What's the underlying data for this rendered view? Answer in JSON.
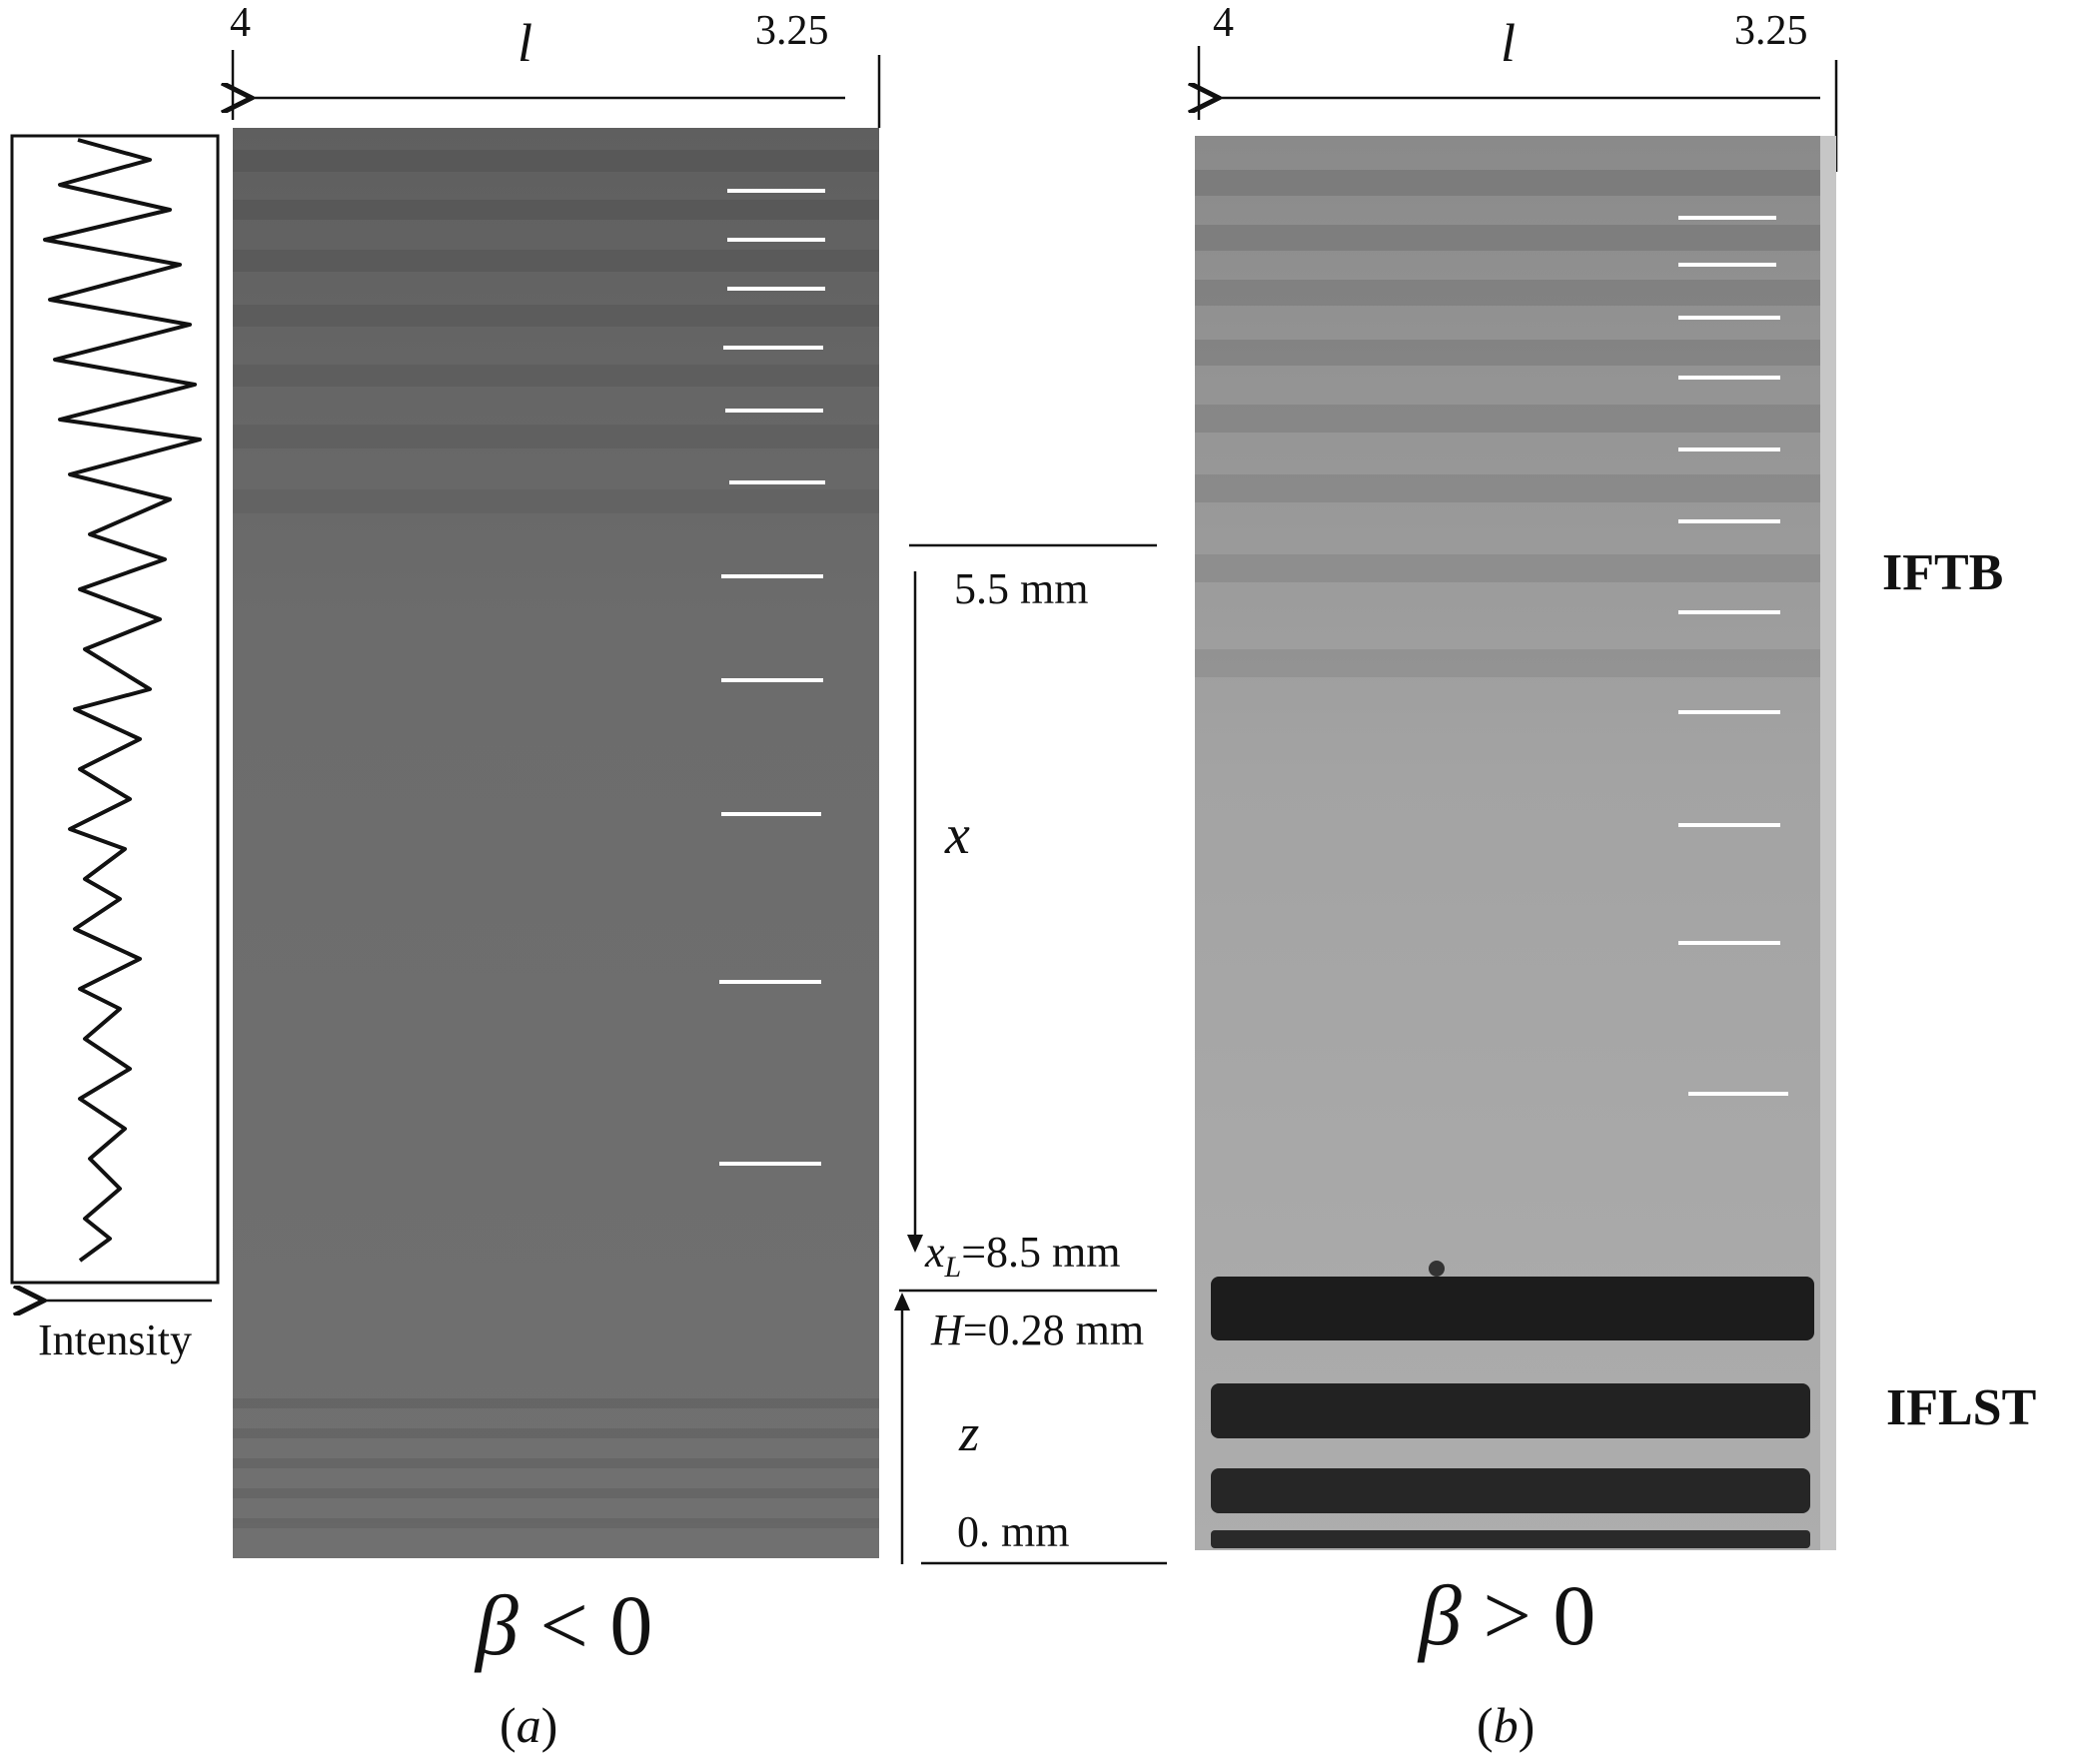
{
  "panel_a": {
    "l_start": "4",
    "l_label": "l",
    "l_end": "3.25",
    "intensity_label": "Intensity",
    "mark_x": "x",
    "mark_55": "5.5 mm",
    "mark_xL_var": "x",
    "mark_xL_sub": "L",
    "mark_xL_val": "=8.5 mm",
    "mark_H_var": "H",
    "mark_H_val": "=0.28 mm",
    "mark_z": "z",
    "mark_0": "0. mm",
    "condition_symbol": "β",
    "condition_rel": " < 0",
    "caption": "(a)",
    "caption_letter": "a"
  },
  "panel_b": {
    "l_start": "4",
    "l_label": "l",
    "l_end": "3.25",
    "label_top": "IFTB",
    "label_bottom": "IFLST",
    "condition_symbol": "β",
    "condition_rel": " > 0",
    "caption_letter": "b"
  },
  "colors": {
    "panel_a_gray": "#6f6f6f",
    "panel_b_gray": "#9c9c9c",
    "fringe_dark": "#1c1c1c",
    "tick_white": "#ffffff"
  }
}
